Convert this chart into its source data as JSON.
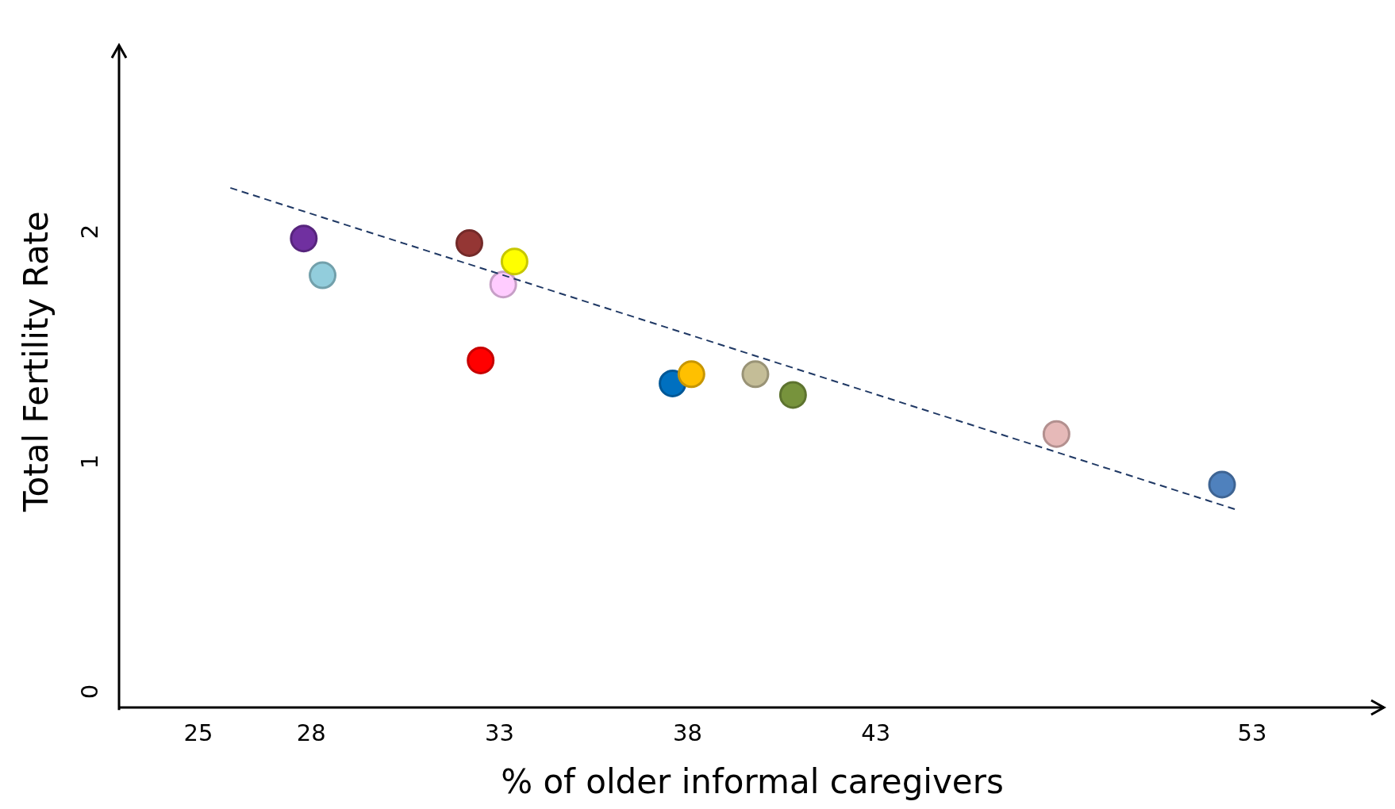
{
  "chart_data": {
    "type": "scatter",
    "xlabel": "% of older informal caregivers",
    "ylabel": "Total Fertility Rate",
    "xlim": [
      22.9,
      56.5
    ],
    "xticks": [
      25,
      28,
      33,
      38,
      43,
      53
    ],
    "ylim": [
      -0.08,
      2.81
    ],
    "yticks": [
      0,
      1,
      2
    ],
    "grid": false,
    "series": [
      {
        "marker": "circle",
        "x": [
          27.8,
          28.3,
          32.2,
          32.5,
          33.1,
          33.4,
          37.6,
          38.1,
          39.8,
          40.8,
          47.8,
          52.2
        ],
        "values": [
          1.97,
          1.81,
          1.95,
          1.44,
          1.77,
          1.87,
          1.34,
          1.38,
          1.38,
          1.29,
          1.12,
          0.9
        ],
        "colors": [
          "#7030a0",
          "#92cddc",
          "#943634",
          "#ff0000",
          "#ffccff",
          "#ffff00",
          "#0070c0",
          "#ffc000",
          "#c4bd97",
          "#77933c",
          "#e6b9b8",
          "#4f81bd"
        ]
      },
      {
        "type": "line",
        "x": [
          25.85,
          52.6
        ],
        "values": [
          2.19,
          0.79
        ],
        "color": "#1f3864",
        "line_style": "dashed",
        "marker": "none"
      }
    ]
  }
}
